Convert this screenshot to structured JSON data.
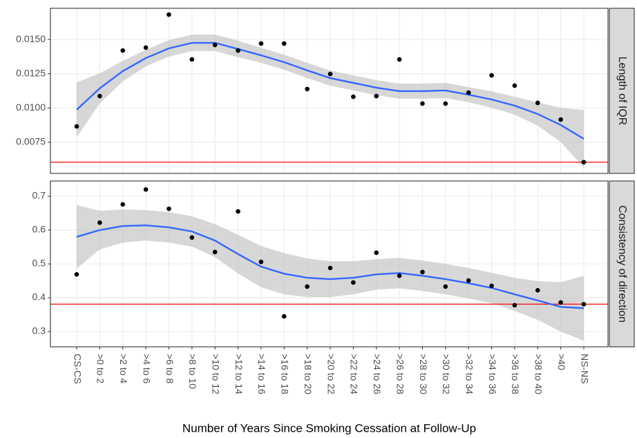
{
  "chart_data": [
    {
      "type": "scatter",
      "strip": "Length of IQR",
      "ylim": [
        0.00523,
        0.01727
      ],
      "yticks": [
        0.0075,
        {
          "value": 0.01,
          "label": "0.0100"
        },
        0.0125,
        {
          "value": 0.015,
          "label": "0.0150"
        }
      ],
      "grid": true,
      "point_color": "#000000",
      "points": [
        0.00866,
        0.01087,
        0.01419,
        0.0144,
        0.01681,
        0.01354,
        0.0146,
        0.01419,
        0.0147,
        0.0147,
        0.01138,
        0.01248,
        0.01082,
        0.01087,
        0.01354,
        0.01032,
        0.01032,
        0.01112,
        0.01238,
        0.01163,
        0.01037,
        0.00916,
        0.00605
      ],
      "smooth": {
        "color": "#3366ff",
        "values": [
          0.00987,
          0.01143,
          0.01269,
          0.01364,
          0.01435,
          0.01475,
          0.01475,
          0.0143,
          0.01384,
          0.01334,
          0.01274,
          0.01218,
          0.01183,
          0.01148,
          0.01123,
          0.01123,
          0.01128,
          0.01097,
          0.01062,
          0.01017,
          0.00956,
          0.00876,
          0.00775
        ]
      },
      "band": {
        "color": "#bdbdbd",
        "lower": [
          0.00787,
          0.01033,
          0.01194,
          0.01304,
          0.01375,
          0.01415,
          0.01415,
          0.0137,
          0.01329,
          0.01279,
          0.01219,
          0.01163,
          0.01128,
          0.01093,
          0.01068,
          0.01068,
          0.01073,
          0.01042,
          0.01002,
          0.00952,
          0.00871,
          0.00751,
          0.00565
        ],
        "upper": [
          0.01187,
          0.01253,
          0.01344,
          0.01424,
          0.01495,
          0.01535,
          0.01535,
          0.0149,
          0.01439,
          0.01389,
          0.01329,
          0.01273,
          0.01238,
          0.01203,
          0.01178,
          0.01178,
          0.01183,
          0.01152,
          0.01122,
          0.01082,
          0.01041,
          0.01001,
          0.00985
        ]
      },
      "hline": {
        "value": 0.00605,
        "color": "#ff0000"
      }
    },
    {
      "type": "scatter",
      "strip": "Consistency of direction",
      "xlabel": "Number of Years Since Smoking Cessation at Follow-Up",
      "categories": [
        "CS-CS",
        ">0 to 2",
        ">2 to 4",
        ">4 to 6",
        ">6 to 8",
        ">8 to 10",
        ">10 to 12",
        ">12 to 14",
        ">14 to 16",
        ">16 to 18",
        ">18 to 20",
        ">20 to 22",
        ">22 to 24",
        ">24 to 26",
        ">26 to 28",
        ">28 to 30",
        ">30 to 32",
        ">32 to 34",
        ">34 to 36",
        ">36 to 38",
        ">38 to 40",
        ">40",
        "NS-NS"
      ],
      "ylim": [
        0.255,
        0.745
      ],
      "yticks": [
        0.3,
        0.4,
        0.5,
        0.6,
        0.7
      ],
      "grid": true,
      "point_color": "#000000",
      "points": [
        0.469,
        0.622,
        0.676,
        0.72,
        0.663,
        0.578,
        0.535,
        0.655,
        0.506,
        0.345,
        0.433,
        0.488,
        0.445,
        0.533,
        0.465,
        0.476,
        0.433,
        0.451,
        0.435,
        0.378,
        0.422,
        0.386,
        0.381
      ],
      "smooth": {
        "color": "#3366ff",
        "values": [
          0.58,
          0.6,
          0.612,
          0.614,
          0.608,
          0.596,
          0.569,
          0.529,
          0.492,
          0.471,
          0.459,
          0.455,
          0.459,
          0.469,
          0.473,
          0.465,
          0.455,
          0.443,
          0.429,
          0.41,
          0.392,
          0.373,
          0.369
        ]
      },
      "band": {
        "color": "#bdbdbd",
        "lower": [
          0.486,
          0.543,
          0.563,
          0.569,
          0.563,
          0.551,
          0.52,
          0.472,
          0.431,
          0.41,
          0.402,
          0.402,
          0.41,
          0.424,
          0.428,
          0.42,
          0.41,
          0.398,
          0.384,
          0.361,
          0.335,
          0.3,
          0.273
        ],
        "upper": [
          0.674,
          0.657,
          0.661,
          0.659,
          0.653,
          0.641,
          0.618,
          0.586,
          0.553,
          0.532,
          0.516,
          0.508,
          0.508,
          0.514,
          0.518,
          0.51,
          0.5,
          0.488,
          0.474,
          0.459,
          0.449,
          0.446,
          0.465
        ]
      },
      "hline": {
        "value": 0.381,
        "color": "#ff0000"
      }
    }
  ]
}
